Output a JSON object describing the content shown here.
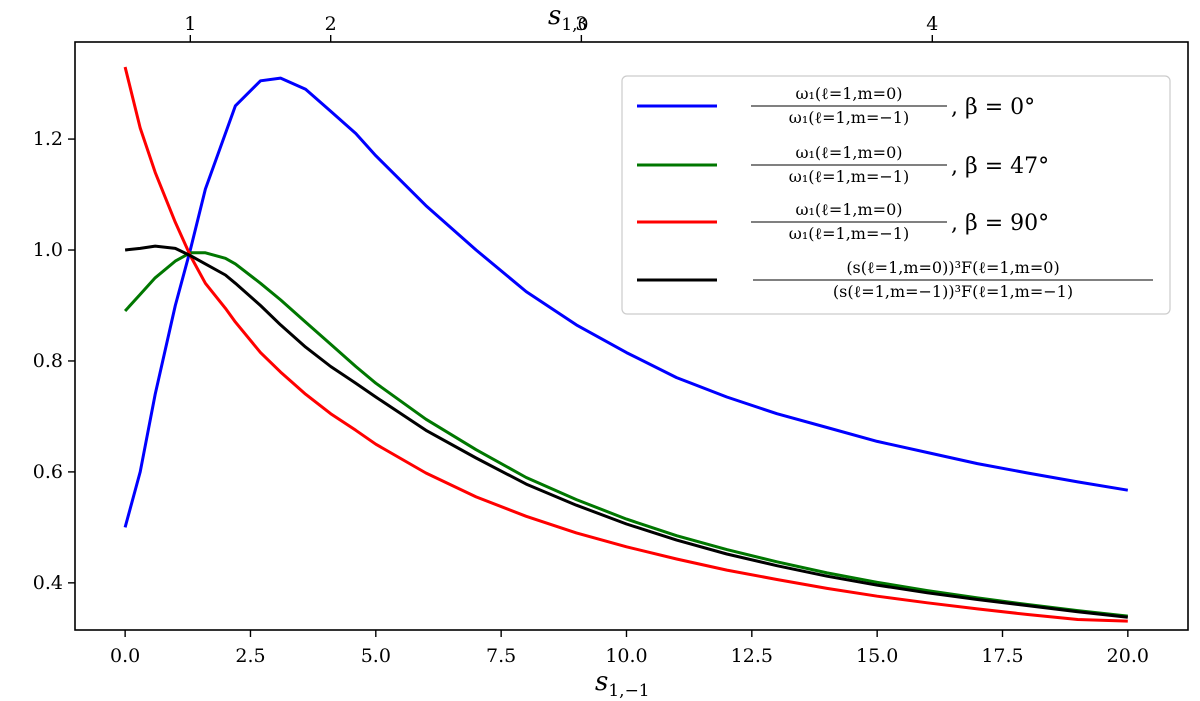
{
  "chart_data": {
    "type": "line",
    "title": "",
    "xlabel": "s_{1,-1}",
    "xlabel_main": "s",
    "xlabel_sub": "1,−1",
    "x2label": "s_{1,0}",
    "x2label_main": "s",
    "x2label_sub": "1,0",
    "ylabel": "",
    "xlim": [
      -1.0,
      21.2
    ],
    "ylim": [
      0.315,
      1.375
    ],
    "xticks": [
      0.0,
      2.5,
      5.0,
      7.5,
      10.0,
      12.5,
      15.0,
      17.5,
      20.0
    ],
    "xtick_labels": [
      "0.0",
      "2.5",
      "5.0",
      "7.5",
      "10.0",
      "12.5",
      "15.0",
      "17.5",
      "20.0"
    ],
    "yticks": [
      0.4,
      0.6,
      0.8,
      1.0,
      1.2
    ],
    "ytick_labels": [
      "0.4",
      "0.6",
      "0.8",
      "1.0",
      "1.2"
    ],
    "top_axis_ticks": [
      {
        "s10": 1,
        "label": "1",
        "at_s1m1": 1.3
      },
      {
        "s10": 2,
        "label": "2",
        "at_s1m1": 4.1
      },
      {
        "s10": 3,
        "label": "3",
        "at_s1m1": 9.1
      },
      {
        "s10": 4,
        "label": "4",
        "at_s1m1": 16.1
      }
    ],
    "grid": false,
    "legend_position": "top-right",
    "x": [
      0.0,
      0.3,
      0.6,
      1.0,
      1.3,
      1.6,
      2.0,
      2.2,
      2.7,
      3.1,
      3.6,
      4.1,
      4.6,
      5.0,
      6.0,
      7.0,
      8.0,
      9.0,
      10.0,
      11.0,
      12.0,
      13.0,
      14.0,
      15.0,
      16.0,
      17.0,
      18.0,
      19.0,
      20.0
    ],
    "series": [
      {
        "name_num": "ω₁(ℓ=1,m=0)",
        "name_den": "ω₁(ℓ=1,m=−1)",
        "name_tail": ", β = 0°",
        "color": "#0000ff",
        "values": [
          0.5,
          0.6,
          0.74,
          0.9,
          1.0,
          1.11,
          1.21,
          1.26,
          1.305,
          1.31,
          1.29,
          1.25,
          1.21,
          1.17,
          1.08,
          1.0,
          0.925,
          0.865,
          0.815,
          0.77,
          0.735,
          0.705,
          0.68,
          0.655,
          0.635,
          0.615,
          0.598,
          0.582,
          0.567
        ]
      },
      {
        "name_num": "ω₁(ℓ=1,m=0)",
        "name_den": "ω₁(ℓ=1,m=−1)",
        "name_tail": ", β = 47°",
        "color": "#007700",
        "values": [
          0.89,
          0.92,
          0.95,
          0.98,
          0.995,
          0.995,
          0.985,
          0.975,
          0.94,
          0.91,
          0.87,
          0.83,
          0.79,
          0.76,
          0.695,
          0.64,
          0.59,
          0.55,
          0.515,
          0.485,
          0.46,
          0.438,
          0.418,
          0.401,
          0.386,
          0.373,
          0.361,
          0.35,
          0.34
        ]
      },
      {
        "name_num": "ω₁(ℓ=1,m=0)",
        "name_den": "ω₁(ℓ=1,m=−1)",
        "name_tail": ", β = 90°",
        "color": "#ff0000",
        "values": [
          1.33,
          1.22,
          1.14,
          1.05,
          0.99,
          0.94,
          0.895,
          0.87,
          0.815,
          0.78,
          0.74,
          0.705,
          0.675,
          0.65,
          0.598,
          0.555,
          0.52,
          0.49,
          0.465,
          0.443,
          0.423,
          0.406,
          0.39,
          0.376,
          0.364,
          0.353,
          0.343,
          0.334,
          0.331
        ]
      },
      {
        "name_num": "(s(ℓ=1,m=0))³F(ℓ=1,m=0)",
        "name_den": "(s(ℓ=1,m=−1))³F(ℓ=1,m=−1)",
        "name_tail": "",
        "color": "#000000",
        "values": [
          1.0,
          1.003,
          1.007,
          1.003,
          0.99,
          0.975,
          0.955,
          0.94,
          0.9,
          0.865,
          0.825,
          0.79,
          0.76,
          0.735,
          0.675,
          0.625,
          0.578,
          0.54,
          0.506,
          0.477,
          0.452,
          0.431,
          0.412,
          0.396,
          0.382,
          0.37,
          0.359,
          0.348,
          0.338
        ]
      }
    ]
  }
}
